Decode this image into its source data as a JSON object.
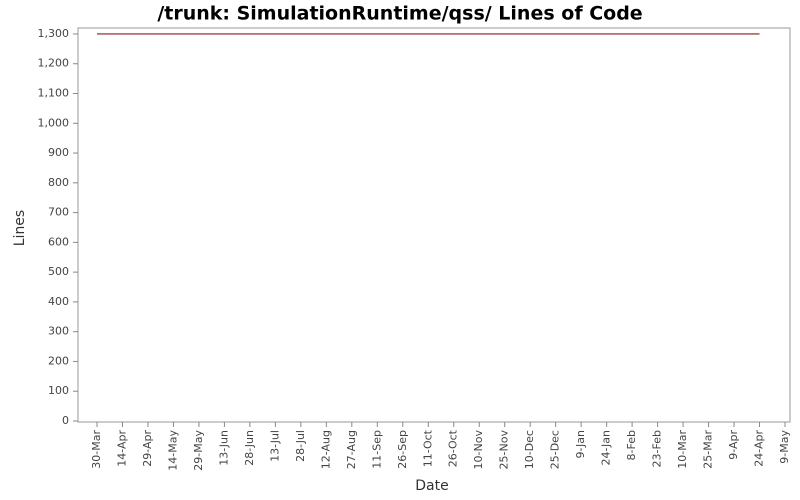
{
  "chart_data": {
    "type": "line",
    "title": "/trunk: SimulationRuntime/qss/ Lines of Code",
    "x_label": "Date",
    "y_label": "Lines",
    "categories": [
      "30-Mar",
      "14-Apr",
      "29-Apr",
      "14-May",
      "29-May",
      "13-Jun",
      "28-Jun",
      "13-Jul",
      "28-Jul",
      "12-Aug",
      "27-Aug",
      "11-Sep",
      "26-Sep",
      "11-Oct",
      "26-Oct",
      "10-Nov",
      "25-Nov",
      "10-Dec",
      "25-Dec",
      "9-Jan",
      "24-Jan",
      "8-Feb",
      "23-Feb",
      "10-Mar",
      "25-Mar",
      "9-Apr",
      "24-Apr",
      "9-May"
    ],
    "values": [
      1300,
      1300,
      1300,
      1300,
      1300,
      1300,
      1300,
      1300,
      1300,
      1300,
      1300,
      1300,
      1300,
      1300,
      1300,
      1300,
      1300,
      1300,
      1300,
      1300,
      1300,
      1300,
      1300,
      1300,
      1300,
      1300,
      1300,
      null
    ],
    "color": "#8b1a1a",
    "ylim": [
      0,
      1320
    ],
    "yticks": [
      0,
      100,
      200,
      300,
      400,
      500,
      600,
      700,
      800,
      900,
      {
        "value": 1000,
        "label": "1,000"
      },
      {
        "value": 1100,
        "label": "1,100"
      },
      {
        "value": 1200,
        "label": "1,200"
      },
      {
        "value": 1300,
        "label": "1,300"
      }
    ],
    "grid": false
  }
}
